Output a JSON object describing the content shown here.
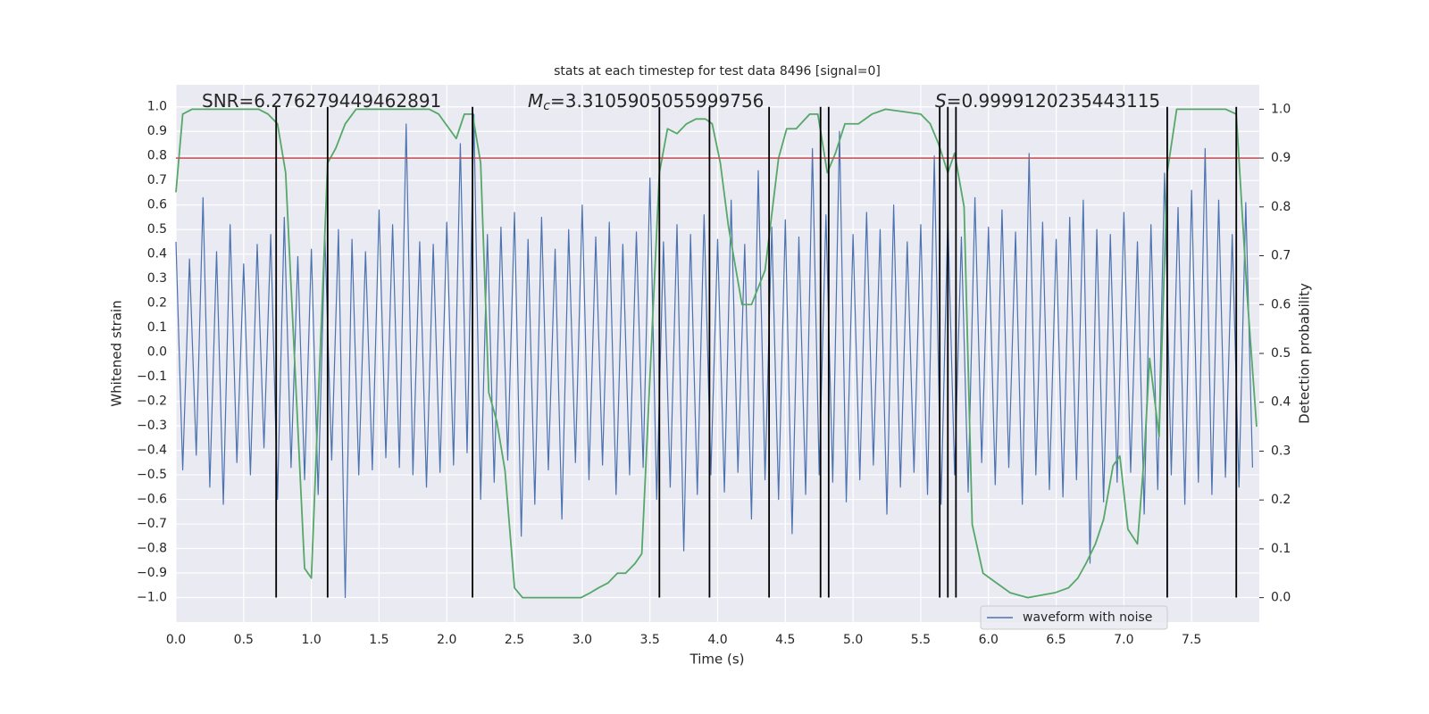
{
  "chart_data": {
    "type": "line",
    "title": "stats at each timestep for test data 8496 [signal=0]",
    "x_label": "Time (s)",
    "y_label": "Whitened strain",
    "y2_label": "Detection probability",
    "xlim": [
      0,
      8
    ],
    "ylim": [
      -1.1,
      1.09
    ],
    "y2lim": [
      -0.05,
      1.05
    ],
    "xticks": [
      {
        "value": 0,
        "label": "0.0"
      },
      0.5,
      {
        "value": 1,
        "label": "1.0"
      },
      1.5,
      {
        "value": 2,
        "label": "2.0"
      },
      2.5,
      {
        "value": 3,
        "label": "3.0"
      },
      3.5,
      {
        "value": 4,
        "label": "4.0"
      },
      4.5,
      {
        "value": 5,
        "label": "5.0"
      },
      5.5,
      {
        "value": 6,
        "label": "6.0"
      },
      6.5,
      {
        "value": 7,
        "label": "7.0"
      },
      7.5
    ],
    "yticks": [
      {
        "value": -1,
        "label": "−1.0"
      },
      {
        "value": -0.9,
        "label": "−0.9"
      },
      {
        "value": -0.8,
        "label": "−0.8"
      },
      {
        "value": -0.7,
        "label": "−0.7"
      },
      {
        "value": -0.6,
        "label": "−0.6"
      },
      {
        "value": -0.5,
        "label": "−0.5"
      },
      {
        "value": -0.4,
        "label": "−0.4"
      },
      {
        "value": -0.3,
        "label": "−0.3"
      },
      {
        "value": -0.2,
        "label": "−0.2"
      },
      {
        "value": -0.1,
        "label": "−0.1"
      },
      {
        "value": 0,
        "label": "0.0"
      },
      0.1,
      0.2,
      0.3,
      0.4,
      0.5,
      0.6,
      0.7,
      0.8,
      0.9,
      {
        "value": 1,
        "label": "1.0"
      }
    ],
    "y2ticks": [
      {
        "value": 0,
        "label": "0.0"
      },
      0.1,
      0.2,
      0.3,
      0.4,
      0.5,
      0.6,
      0.7,
      0.8,
      0.9,
      {
        "value": 1,
        "label": "1.0"
      }
    ],
    "grid": true,
    "legend": "lower right",
    "series": [
      {
        "name": "waveform with noise",
        "color": "#4c72b0",
        "axis": "y",
        "x": [
          0,
          0.05,
          0.1,
          0.15,
          0.2,
          0.25,
          0.3,
          0.35,
          0.4,
          0.45,
          0.5,
          0.55,
          0.6,
          0.65,
          0.7,
          0.75,
          0.8,
          0.85,
          0.9,
          0.95,
          1,
          1.05,
          1.1,
          1.15,
          1.2,
          1.25,
          1.3,
          1.35,
          1.4,
          1.45,
          1.5,
          1.55,
          1.6,
          1.65,
          1.7,
          1.75,
          1.8,
          1.85,
          1.9,
          1.95,
          2,
          2.05,
          2.1,
          2.15,
          2.2,
          2.25,
          2.3,
          2.35,
          2.4,
          2.45,
          2.5,
          2.55,
          2.6,
          2.65,
          2.7,
          2.75,
          2.8,
          2.85,
          2.9,
          2.95,
          3,
          3.05,
          3.1,
          3.15,
          3.2,
          3.25,
          3.3,
          3.35,
          3.4,
          3.45,
          3.5,
          3.55,
          3.6,
          3.65,
          3.7,
          3.75,
          3.8,
          3.85,
          3.9,
          3.95,
          4,
          4.05,
          4.1,
          4.15,
          4.2,
          4.25,
          4.3,
          4.35,
          4.4,
          4.45,
          4.5,
          4.55,
          4.6,
          4.65,
          4.7,
          4.75,
          4.8,
          4.85,
          4.9,
          4.95,
          5,
          5.05,
          5.1,
          5.15,
          5.2,
          5.25,
          5.3,
          5.35,
          5.4,
          5.45,
          5.5,
          5.55,
          5.6,
          5.65,
          5.7,
          5.75,
          5.8,
          5.85,
          5.9,
          5.95,
          6,
          6.05,
          6.1,
          6.15,
          6.2,
          6.25,
          6.3,
          6.35,
          6.4,
          6.45,
          6.5,
          6.55,
          6.6,
          6.65,
          6.7,
          6.75,
          6.8,
          6.85,
          6.9,
          6.95,
          7,
          7.05,
          7.1,
          7.15,
          7.2,
          7.25,
          7.3,
          7.35,
          7.4,
          7.45,
          7.5,
          7.55,
          7.6,
          7.65,
          7.7,
          7.75,
          7.8,
          7.85,
          7.9,
          7.95
        ],
        "values": [
          0.45,
          -0.48,
          0.38,
          -0.42,
          0.63,
          -0.55,
          0.41,
          -0.62,
          0.52,
          -0.45,
          0.36,
          -0.5,
          0.44,
          -0.39,
          0.48,
          -0.6,
          0.55,
          -0.47,
          0.39,
          -0.52,
          0.42,
          -0.58,
          0.47,
          -0.44,
          0.5,
          -1.0,
          0.46,
          -0.5,
          0.41,
          -0.48,
          0.58,
          -0.43,
          0.52,
          -0.47,
          0.93,
          -0.5,
          0.45,
          -0.55,
          0.44,
          -0.49,
          0.53,
          -0.46,
          0.85,
          -0.41,
          0.97,
          -0.6,
          0.48,
          -0.53,
          0.51,
          -0.44,
          0.57,
          -0.75,
          0.46,
          -0.62,
          0.55,
          -0.48,
          0.42,
          -0.68,
          0.5,
          -0.45,
          0.6,
          -0.52,
          0.47,
          -0.46,
          0.53,
          -0.58,
          0.44,
          -0.5,
          0.49,
          -0.47,
          0.71,
          -0.6,
          0.45,
          -0.55,
          0.52,
          -0.81,
          0.48,
          -0.58,
          0.56,
          -0.5,
          0.46,
          -0.57,
          0.62,
          -0.49,
          0.44,
          -0.68,
          0.74,
          -0.52,
          0.51,
          -0.6,
          0.54,
          -0.74,
          0.47,
          -0.58,
          0.83,
          -0.5,
          0.56,
          -0.53,
          0.9,
          -0.61,
          0.48,
          -0.52,
          0.57,
          -0.46,
          0.5,
          -0.66,
          0.6,
          -0.55,
          0.45,
          -0.49,
          0.52,
          -0.58,
          0.8,
          -0.62,
          0.55,
          -0.5,
          0.47,
          -0.57,
          0.63,
          -0.45,
          0.51,
          -0.54,
          0.58,
          -0.47,
          0.49,
          -0.62,
          0.81,
          -0.5,
          0.53,
          -0.56,
          0.46,
          -0.59,
          0.55,
          -0.52,
          0.62,
          -0.86,
          0.5,
          -0.61,
          0.48,
          -0.53,
          0.57,
          -0.49,
          0.45,
          -0.66,
          0.52,
          -0.56,
          0.73,
          -0.5,
          0.59,
          -0.62,
          0.66,
          -0.53,
          0.83,
          -0.58,
          0.62,
          -0.51,
          0.48,
          -0.55,
          0.61,
          -0.47
        ]
      },
      {
        "color": "#55a868",
        "axis": "y2",
        "x": [
          0,
          0.05,
          0.12,
          0.61,
          0.68,
          0.75,
          0.81,
          0.95,
          1.0,
          1.12,
          1.18,
          1.25,
          1.33,
          1.87,
          1.94,
          2.07,
          2.13,
          2.19,
          2.25,
          2.31,
          2.37,
          2.43,
          2.5,
          2.56,
          2.99,
          3.06,
          3.12,
          3.19,
          3.26,
          3.32,
          3.39,
          3.44,
          3.57,
          3.63,
          3.7,
          3.77,
          3.84,
          3.91,
          3.96,
          4.02,
          4.08,
          4.18,
          4.25,
          4.35,
          4.45,
          4.51,
          4.58,
          4.68,
          4.74,
          4.81,
          4.87,
          4.94,
          5.04,
          5.14,
          5.24,
          5.5,
          5.57,
          5.63,
          5.7,
          5.75,
          5.82,
          5.88,
          5.96,
          6.06,
          6.16,
          6.29,
          6.49,
          6.59,
          6.66,
          6.72,
          6.79,
          6.85,
          6.92,
          6.97,
          7.03,
          7.1,
          7.15,
          7.19,
          7.26,
          7.32,
          7.39,
          7.75,
          7.83,
          7.91,
          7.98
        ],
        "values": [
          0.83,
          0.99,
          1.0,
          1.0,
          0.99,
          0.97,
          0.87,
          0.06,
          0.04,
          0.89,
          0.92,
          0.97,
          1.0,
          1.0,
          0.99,
          0.94,
          0.99,
          0.99,
          0.89,
          0.42,
          0.36,
          0.26,
          0.02,
          0.0,
          0.0,
          0.01,
          0.02,
          0.03,
          0.05,
          0.05,
          0.07,
          0.09,
          0.87,
          0.96,
          0.95,
          0.97,
          0.98,
          0.98,
          0.97,
          0.89,
          0.76,
          0.6,
          0.6,
          0.67,
          0.9,
          0.96,
          0.96,
          0.99,
          0.99,
          0.87,
          0.91,
          0.97,
          0.97,
          0.99,
          1.0,
          0.99,
          0.97,
          0.93,
          0.87,
          0.91,
          0.8,
          0.15,
          0.05,
          0.03,
          0.01,
          0.0,
          0.01,
          0.02,
          0.04,
          0.07,
          0.11,
          0.16,
          0.27,
          0.29,
          0.14,
          0.11,
          0.29,
          0.49,
          0.33,
          0.87,
          1.0,
          1.0,
          0.99,
          0.62,
          0.35
        ]
      }
    ],
    "hlines": [
      {
        "value": 0.9,
        "axis": "y2",
        "color": "#c44e52"
      }
    ],
    "vlines": [
      0.74,
      1.12,
      2.19,
      3.57,
      3.94,
      4.38,
      4.76,
      4.82,
      5.64,
      5.7,
      5.76,
      7.32,
      7.83
    ],
    "vline_range": [
      -1,
      1
    ],
    "vline_color": "#000000",
    "annotations": [
      {
        "text": "SNR=6.276279449462891"
      },
      {
        "symbol": "M",
        "subscript": "c",
        "text": "=3.3105905055999756"
      },
      {
        "symbol": "S",
        "text": "=0.9999120235443115"
      }
    ]
  }
}
